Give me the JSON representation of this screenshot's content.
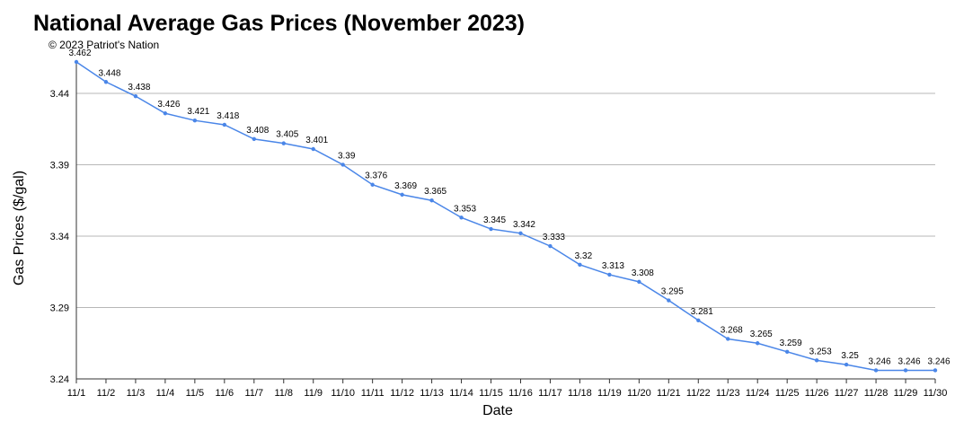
{
  "chart_data": {
    "type": "line",
    "title": "National Average Gas Prices (November 2023)",
    "subtitle": "© 2023 Patriot's Nation",
    "xlabel": "Date",
    "ylabel": "Gas Prices ($/gal)",
    "ylim": [
      3.24,
      3.462
    ],
    "yticks": [
      "3.24",
      "3.29",
      "3.34",
      "3.39",
      "3.44"
    ],
    "grid": true,
    "legend": "none",
    "line_color": "#4a86e8",
    "categories": [
      "11/1",
      "11/2",
      "11/3",
      "11/4",
      "11/5",
      "11/6",
      "11/7",
      "11/8",
      "11/9",
      "11/10",
      "11/11",
      "11/12",
      "11/13",
      "11/14",
      "11/15",
      "11/16",
      "11/17",
      "11/18",
      "11/19",
      "11/20",
      "11/21",
      "11/22",
      "11/23",
      "11/24",
      "11/25",
      "11/26",
      "11/27",
      "11/28",
      "11/29",
      "11/30"
    ],
    "values": [
      3.462,
      3.448,
      3.438,
      3.426,
      3.421,
      3.418,
      3.408,
      3.405,
      3.401,
      3.39,
      3.376,
      3.369,
      3.365,
      3.353,
      3.345,
      3.342,
      3.333,
      3.32,
      3.313,
      3.308,
      3.295,
      3.281,
      3.268,
      3.265,
      3.259,
      3.253,
      3.25,
      3.246,
      3.246,
      3.246
    ]
  }
}
